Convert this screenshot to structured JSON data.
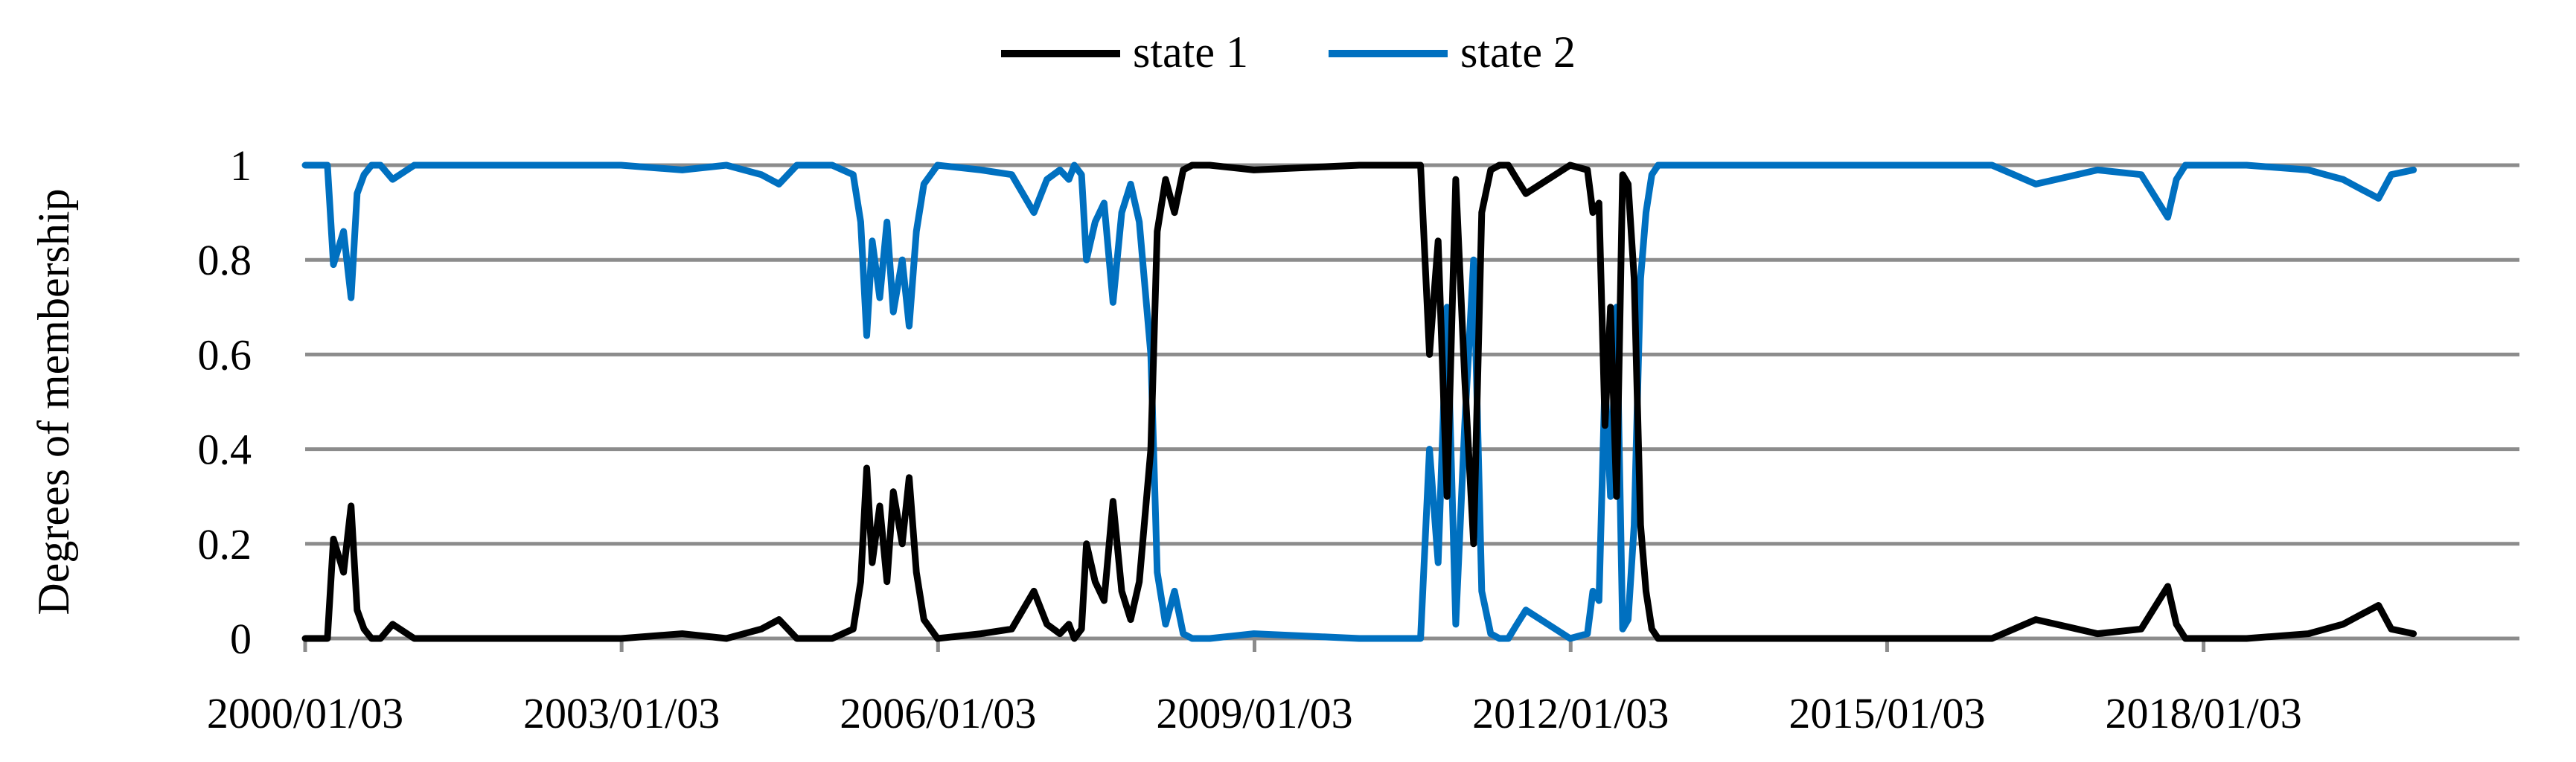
{
  "chart_data": {
    "type": "line",
    "title": "",
    "xlabel": "",
    "ylabel": "Degrees of membership",
    "ylim": [
      0,
      1
    ],
    "yticks": [
      "0",
      "0.2",
      "0.4",
      "0.6",
      "0.8",
      "1"
    ],
    "xlim": [
      "2000/01/03",
      "2021/01/01"
    ],
    "xticks": [
      "2000/01/03",
      "2003/01/03",
      "2006/01/03",
      "2009/01/03",
      "2012/01/03",
      "2015/01/03",
      "2018/01/03"
    ],
    "grid": true,
    "legend_position": "top-center",
    "colors": {
      "state1": "#000000",
      "state2": "#0070C0",
      "grid": "#8c8c8c"
    },
    "series": [
      {
        "name": "state 1",
        "x": [
          "2000/01/03",
          "2000/03/20",
          "2000/04/10",
          "2000/05/15",
          "2000/06/10",
          "2000/07/01",
          "2000/07/25",
          "2000/08/20",
          "2000/09/20",
          "2000/11/01",
          "2001/01/15",
          "2002/01/01",
          "2003/01/01",
          "2003/08/01",
          "2004/01/01",
          "2004/05/01",
          "2004/07/01",
          "2004/09/01",
          "2005/01/01",
          "2005/03/15",
          "2005/04/10",
          "2005/05/01",
          "2005/05/20",
          "2005/06/15",
          "2005/07/10",
          "2005/08/01",
          "2005/09/01",
          "2005/09/25",
          "2005/10/20",
          "2005/11/15",
          "2006/01/01",
          "2006/06/01",
          "2006/09/15",
          "2006/12/01",
          "2007/01/15",
          "2007/03/01",
          "2007/04/01",
          "2007/04/20",
          "2007/05/15",
          "2007/06/01",
          "2007/07/01",
          "2007/08/01",
          "2007/09/01",
          "2007/10/01",
          "2007/11/01",
          "2007/12/01",
          "2008/01/10",
          "2008/02/01",
          "2008/03/01",
          "2008/04/01",
          "2008/05/01",
          "2008/06/01",
          "2008/07/01",
          "2008/08/01",
          "2009/01/01",
          "2010/01/01",
          "2010/06/01",
          "2010/08/01",
          "2010/09/01",
          "2010/10/01",
          "2010/11/01",
          "2010/12/01",
          "2011/01/01",
          "2011/02/01",
          "2011/03/01",
          "2011/04/01",
          "2011/05/01",
          "2011/06/01",
          "2011/07/01",
          "2011/08/01",
          "2012/01/01",
          "2012/03/01",
          "2012/03/20",
          "2012/04/10",
          "2012/05/01",
          "2012/05/20",
          "2012/06/10",
          "2012/07/01",
          "2012/07/20",
          "2012/08/10",
          "2012/09/01",
          "2012/09/20",
          "2012/10/10",
          "2012/11/01",
          "2012/11/20",
          "2012/12/10",
          "2013/01/01",
          "2013/01/20",
          "2013/02/10",
          "2013/03/01",
          "2014/01/01",
          "2015/01/01",
          "2016/01/01",
          "2016/06/01",
          "2017/01/01",
          "2017/06/01",
          "2017/09/01",
          "2017/10/01",
          "2017/11/01",
          "2018/01/01",
          "2018/06/01",
          "2019/01/01",
          "2019/03/01",
          "2019/05/01",
          "2019/07/01",
          "2019/09/01",
          "2019/10/15",
          "2019/12/31"
        ],
        "y": [
          0,
          0,
          0.21,
          0.14,
          0.28,
          0.06,
          0.02,
          0,
          0,
          0.03,
          0,
          0,
          0,
          0.01,
          0,
          0.02,
          0.04,
          0,
          0,
          0.02,
          0.12,
          0.36,
          0.16,
          0.28,
          0.12,
          0.31,
          0.2,
          0.34,
          0.14,
          0.04,
          0,
          0.01,
          0.02,
          0.1,
          0.03,
          0.01,
          0.03,
          0,
          0.02,
          0.2,
          0.12,
          0.08,
          0.29,
          0.1,
          0.04,
          0.12,
          0.4,
          0.86,
          0.97,
          0.9,
          0.99,
          1,
          1,
          1,
          0.99,
          1,
          1,
          1,
          0.6,
          0.84,
          0.3,
          0.97,
          0.55,
          0.2,
          0.9,
          0.99,
          1,
          1,
          0.97,
          0.94,
          1,
          0.99,
          0.9,
          0.92,
          0.45,
          0.7,
          0.3,
          0.98,
          0.96,
          0.76,
          0.24,
          0.1,
          0.02,
          0,
          0,
          0,
          0,
          0,
          0,
          0,
          0,
          0,
          0,
          0.04,
          0.01,
          0.02,
          0.11,
          0.03,
          0,
          0,
          0,
          0.01,
          0.02,
          0.03,
          0.05,
          0.07,
          0.02,
          0.01
        ]
      },
      {
        "name": "state 2",
        "x": [
          "2000/01/03",
          "2000/03/20",
          "2000/04/10",
          "2000/05/15",
          "2000/06/10",
          "2000/07/01",
          "2000/07/25",
          "2000/08/20",
          "2000/09/20",
          "2000/11/01",
          "2001/01/15",
          "2002/01/01",
          "2003/01/01",
          "2003/08/01",
          "2004/01/01",
          "2004/05/01",
          "2004/07/01",
          "2004/09/01",
          "2005/01/01",
          "2005/03/15",
          "2005/04/10",
          "2005/05/01",
          "2005/05/20",
          "2005/06/15",
          "2005/07/10",
          "2005/08/01",
          "2005/09/01",
          "2005/09/25",
          "2005/10/20",
          "2005/11/15",
          "2006/01/01",
          "2006/06/01",
          "2006/09/15",
          "2006/12/01",
          "2007/01/15",
          "2007/03/01",
          "2007/04/01",
          "2007/04/20",
          "2007/05/15",
          "2007/06/01",
          "2007/07/01",
          "2007/08/01",
          "2007/09/01",
          "2007/10/01",
          "2007/11/01",
          "2007/12/01",
          "2008/01/10",
          "2008/02/01",
          "2008/03/01",
          "2008/04/01",
          "2008/05/01",
          "2008/06/01",
          "2008/07/01",
          "2008/08/01",
          "2009/01/01",
          "2010/01/01",
          "2010/06/01",
          "2010/08/01",
          "2010/09/01",
          "2010/10/01",
          "2010/11/01",
          "2010/12/01",
          "2011/01/01",
          "2011/02/01",
          "2011/03/01",
          "2011/04/01",
          "2011/05/01",
          "2011/06/01",
          "2011/07/01",
          "2011/08/01",
          "2012/01/01",
          "2012/03/01",
          "2012/03/20",
          "2012/04/10",
          "2012/05/01",
          "2012/05/20",
          "2012/06/10",
          "2012/07/01",
          "2012/07/20",
          "2012/08/10",
          "2012/09/01",
          "2012/09/20",
          "2012/10/10",
          "2012/11/01",
          "2012/11/20",
          "2012/12/10",
          "2013/01/01",
          "2013/01/20",
          "2013/02/10",
          "2013/03/01",
          "2014/01/01",
          "2015/01/01",
          "2016/01/01",
          "2016/06/01",
          "2017/01/01",
          "2017/06/01",
          "2017/09/01",
          "2017/10/01",
          "2017/11/01",
          "2018/01/01",
          "2018/06/01",
          "2019/01/01",
          "2019/03/01",
          "2019/05/01",
          "2019/07/01",
          "2019/09/01",
          "2019/10/15",
          "2019/12/31"
        ],
        "y": [
          1,
          1,
          0.79,
          0.86,
          0.72,
          0.94,
          0.98,
          1,
          1,
          0.97,
          1,
          1,
          1,
          0.99,
          1,
          0.98,
          0.96,
          1,
          1,
          0.98,
          0.88,
          0.64,
          0.84,
          0.72,
          0.88,
          0.69,
          0.8,
          0.66,
          0.86,
          0.96,
          1,
          0.99,
          0.98,
          0.9,
          0.97,
          0.99,
          0.97,
          1,
          0.98,
          0.8,
          0.88,
          0.92,
          0.71,
          0.9,
          0.96,
          0.88,
          0.6,
          0.14,
          0.03,
          0.1,
          0.01,
          0,
          0,
          0,
          0.01,
          0,
          0,
          0,
          0.4,
          0.16,
          0.7,
          0.03,
          0.45,
          0.8,
          0.1,
          0.01,
          0,
          0,
          0.03,
          0.06,
          0,
          0.01,
          0.1,
          0.08,
          0.55,
          0.3,
          0.7,
          0.02,
          0.04,
          0.24,
          0.76,
          0.9,
          0.98,
          1,
          1,
          1,
          1,
          1,
          1,
          1,
          1,
          1,
          1,
          0.96,
          0.99,
          0.98,
          0.89,
          0.97,
          1,
          1,
          1,
          0.99,
          0.98,
          0.97,
          0.95,
          0.93,
          0.98,
          0.99
        ]
      }
    ]
  }
}
